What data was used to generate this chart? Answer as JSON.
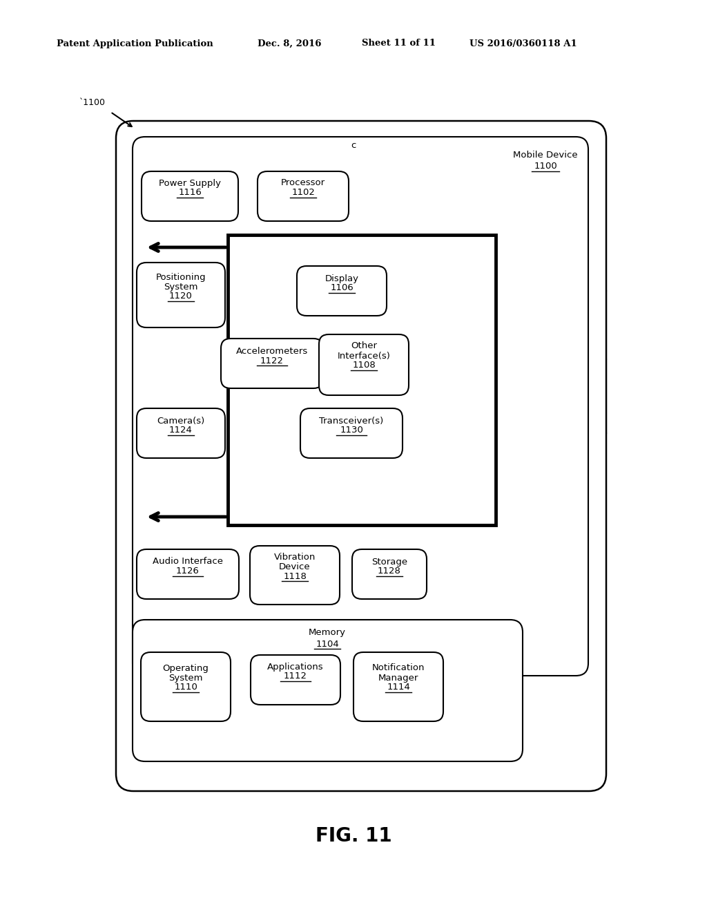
{
  "bg_color": "#ffffff",
  "header_text": "Patent Application Publication",
  "header_date": "Dec. 8, 2016",
  "header_sheet": "Sheet 11 of 11",
  "header_patent": "US 2016/0360118 A1",
  "fig_label": "FIG. 11"
}
